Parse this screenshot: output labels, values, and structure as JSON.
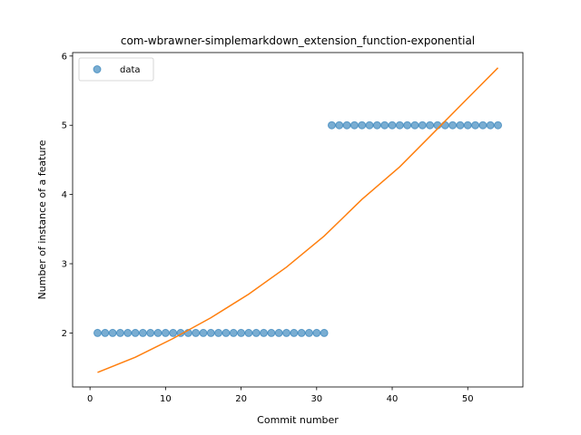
{
  "chart_data": {
    "type": "scatter",
    "title": "com-wbrawner-simplemarkdown_extension_function-exponential",
    "xlabel": "Commit number",
    "ylabel": "Number of instance of a feature",
    "xlim": [
      -2.3,
      57.3
    ],
    "ylim": [
      1.22,
      6.05
    ],
    "xticks": [
      0,
      10,
      20,
      30,
      40,
      50
    ],
    "yticks": [
      2,
      3,
      4,
      5,
      6
    ],
    "grid": false,
    "legend": {
      "placement": "upper-left",
      "entries": [
        "data"
      ]
    },
    "series": [
      {
        "name": "data",
        "kind": "scatter",
        "color": "#1f77b4",
        "x": [
          1,
          2,
          3,
          4,
          5,
          6,
          7,
          8,
          9,
          10,
          11,
          12,
          13,
          14,
          15,
          16,
          17,
          18,
          19,
          20,
          21,
          22,
          23,
          24,
          25,
          26,
          27,
          28,
          29,
          30,
          31,
          32,
          33,
          34,
          35,
          36,
          37,
          38,
          39,
          40,
          41,
          42,
          43,
          44,
          45,
          46,
          47,
          48,
          49,
          50,
          51,
          52,
          53,
          54
        ],
        "y": [
          2,
          2,
          2,
          2,
          2,
          2,
          2,
          2,
          2,
          2,
          2,
          2,
          2,
          2,
          2,
          2,
          2,
          2,
          2,
          2,
          2,
          2,
          2,
          2,
          2,
          2,
          2,
          2,
          2,
          2,
          2,
          5,
          5,
          5,
          5,
          5,
          5,
          5,
          5,
          5,
          5,
          5,
          5,
          5,
          5,
          5,
          5,
          5,
          5,
          5,
          5,
          5,
          5,
          5
        ]
      },
      {
        "kind": "line",
        "color": "#ff7f0e",
        "x": [
          1,
          6,
          11,
          16,
          21,
          26,
          31,
          36,
          41,
          46,
          51,
          54
        ],
        "y": [
          1.43,
          1.65,
          1.92,
          2.22,
          2.56,
          2.95,
          3.4,
          3.93,
          4.4,
          4.95,
          5.5,
          5.83
        ]
      }
    ]
  }
}
